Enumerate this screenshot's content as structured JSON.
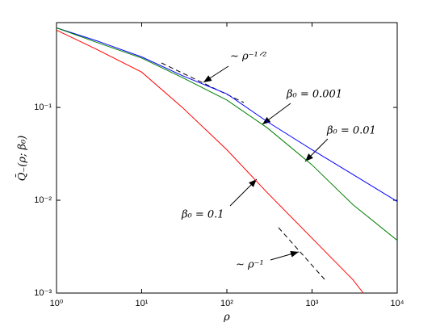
{
  "chart_data": {
    "type": "line",
    "xlabel": "ρ",
    "ylabel": "Q̄₋(ρ; β₀)",
    "xscale": "log",
    "yscale": "log",
    "xlim": [
      1,
      10000
    ],
    "ylim": [
      0.001,
      0.82
    ],
    "xticks": [
      {
        "value": 1,
        "label": "10⁰"
      },
      {
        "value": 10,
        "label": "10¹"
      },
      {
        "value": 100,
        "label": "10²"
      },
      {
        "value": 1000,
        "label": "10³"
      },
      {
        "value": 10000,
        "label": "10⁴"
      }
    ],
    "yticks": [
      {
        "value": 0.001,
        "label": "10⁻³"
      },
      {
        "value": 0.01,
        "label": "10⁻²"
      },
      {
        "value": 0.1,
        "label": "10⁻¹"
      }
    ],
    "series": [
      {
        "name": "β₀ = 0.001",
        "color": "#0000ff",
        "x": [
          1,
          3,
          10,
          30,
          100,
          300,
          1000,
          3000,
          10000
        ],
        "values": [
          0.72,
          0.52,
          0.35,
          0.22,
          0.14,
          0.07,
          0.035,
          0.019,
          0.0097
        ]
      },
      {
        "name": "β₀ = 0.01",
        "color": "#008000",
        "x": [
          1,
          3,
          10,
          30,
          100,
          300,
          1000,
          3000,
          10000
        ],
        "values": [
          0.72,
          0.5,
          0.34,
          0.21,
          0.12,
          0.06,
          0.024,
          0.009,
          0.0037
        ]
      },
      {
        "name": "β₀ = 0.1",
        "color": "#ff0000",
        "x": [
          1,
          3,
          10,
          30,
          100,
          300,
          1000,
          3000,
          4000
        ],
        "values": [
          0.68,
          0.42,
          0.24,
          0.1,
          0.035,
          0.012,
          0.0039,
          0.0014,
          0.001
        ]
      }
    ],
    "annotations": [
      "∼ ρ⁻¹ᐟ²",
      "∼ ρ⁻¹"
    ]
  }
}
